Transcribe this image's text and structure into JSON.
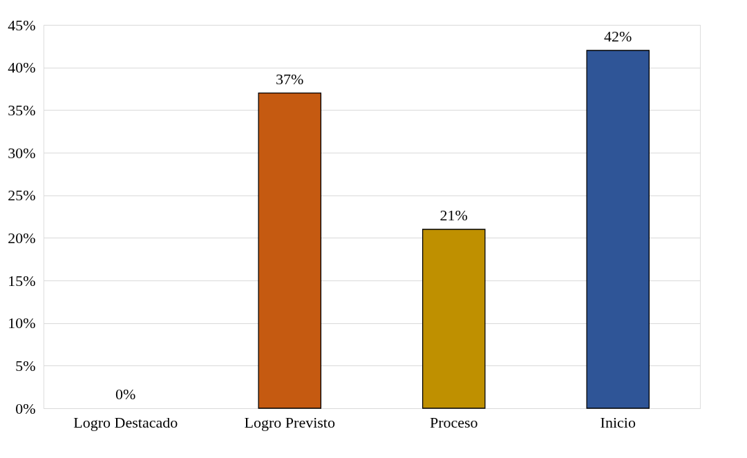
{
  "chart_data": {
    "type": "bar",
    "categories": [
      "Logro Destacado",
      "Logro Previsto",
      "Proceso",
      "Inicio"
    ],
    "values": [
      0,
      37,
      21,
      42
    ],
    "colors": [
      "#4472c4",
      "#c55a11",
      "#bf9000",
      "#2f5597"
    ],
    "value_labels": [
      "0%",
      "37%",
      "21%",
      "42%"
    ],
    "ylim": [
      0,
      45
    ],
    "yticks": [
      {
        "value": 0,
        "label": "0%"
      },
      {
        "value": 5,
        "label": "5%"
      },
      {
        "value": 10,
        "label": "10%"
      },
      {
        "value": 15,
        "label": "15%"
      },
      {
        "value": 20,
        "label": "20%"
      },
      {
        "value": 25,
        "label": "25%"
      },
      {
        "value": 30,
        "label": "30%"
      },
      {
        "value": 35,
        "label": "35%"
      },
      {
        "value": 40,
        "label": "40%"
      },
      {
        "value": 45,
        "label": "45%"
      }
    ],
    "grid": "y"
  }
}
